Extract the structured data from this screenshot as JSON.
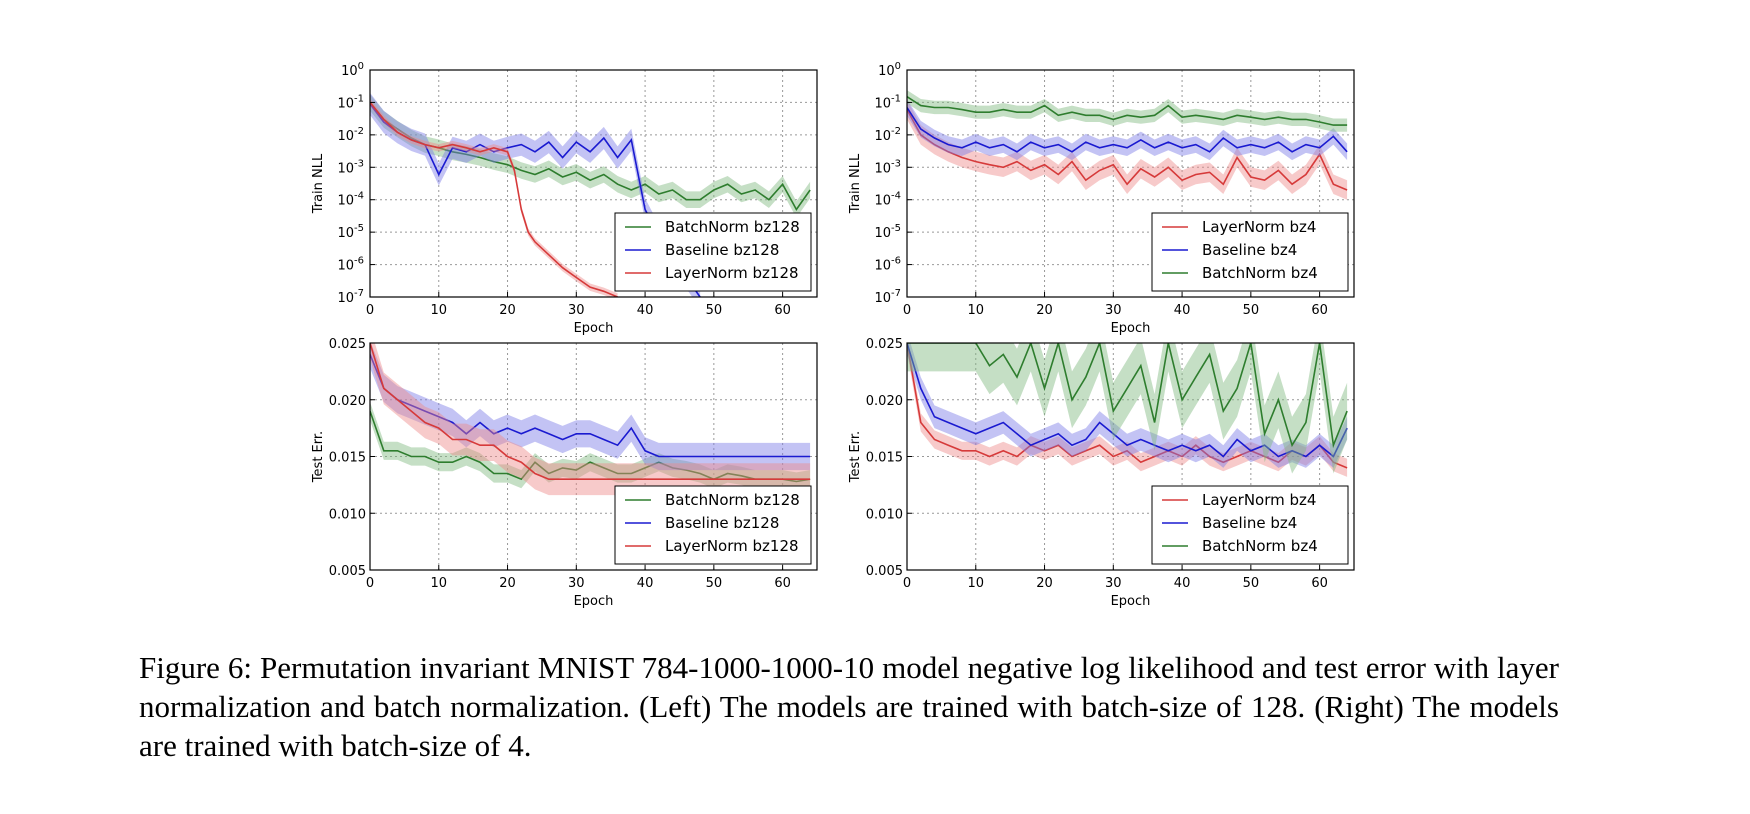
{
  "colors": {
    "batchnorm": "#2e7d2e",
    "baseline": "#1a1ad0",
    "layernorm": "#d63a3a"
  },
  "caption": "Figure 6: Permutation invariant MNIST 784-1000-1000-10 model negative log likelihood and test error with layer normalization and batch normalization. (Left) The models are trained with batch-size of 128. (Right) The models are trained with batch-size of 4.",
  "chart_data": [
    {
      "id": "nll-bz128",
      "type": "line",
      "xlabel": "Epoch",
      "ylabel": "Train NLL",
      "yscale": "log",
      "xlim": [
        0,
        65
      ],
      "ylim": [
        1e-07,
        1
      ],
      "xticks": [
        "0",
        "10",
        "20",
        "30",
        "40",
        "50",
        "60"
      ],
      "ytick_exponents": [
        "0",
        "-1",
        "-2",
        "-3",
        "-4",
        "-5",
        "-6",
        "-7"
      ],
      "grid": true,
      "legend_position": "lower-right",
      "legend": [
        "BatchNorm bz128",
        "Baseline bz128",
        "LayerNorm bz128"
      ],
      "series": [
        {
          "name": "BatchNorm bz128",
          "color_key": "batchnorm",
          "x": [
            0,
            2,
            4,
            6,
            8,
            10,
            12,
            14,
            16,
            18,
            20,
            22,
            24,
            26,
            28,
            30,
            32,
            34,
            36,
            38,
            40,
            42,
            44,
            46,
            48,
            50,
            52,
            54,
            56,
            58,
            60,
            62,
            64
          ],
          "y": [
            0.1,
            0.03,
            0.015,
            0.008,
            0.005,
            0.004,
            0.003,
            0.0025,
            0.002,
            0.0015,
            0.0012,
            0.0008,
            0.0006,
            0.0009,
            0.0005,
            0.0007,
            0.0004,
            0.0006,
            0.0003,
            0.0002,
            0.0003,
            0.00015,
            0.0002,
            0.0001,
            0.0001,
            0.0002,
            0.0003,
            0.00015,
            0.0002,
            0.0001,
            0.0003,
            5e-05,
            0.0002
          ],
          "band": 1.8
        },
        {
          "name": "Baseline bz128",
          "color_key": "baseline",
          "x": [
            0,
            2,
            4,
            6,
            8,
            10,
            12,
            14,
            16,
            18,
            20,
            22,
            24,
            26,
            28,
            30,
            32,
            34,
            36,
            38,
            40,
            42,
            44,
            46,
            48
          ],
          "y": [
            0.09,
            0.025,
            0.012,
            0.007,
            0.005,
            0.0006,
            0.004,
            0.003,
            0.005,
            0.003,
            0.004,
            0.005,
            0.003,
            0.006,
            0.002,
            0.006,
            0.003,
            0.008,
            0.002,
            0.007,
            5e-05,
            8e-06,
            1.5e-06,
            4e-07,
            1e-07
          ],
          "band": 2.2
        },
        {
          "name": "LayerNorm bz128",
          "color_key": "layernorm",
          "x": [
            0,
            2,
            4,
            6,
            8,
            10,
            12,
            14,
            16,
            18,
            20,
            21,
            22,
            23,
            24,
            26,
            28,
            30,
            32,
            34,
            36
          ],
          "y": [
            0.1,
            0.03,
            0.012,
            0.007,
            0.005,
            0.004,
            0.005,
            0.004,
            0.003,
            0.004,
            0.003,
            0.0008,
            5e-05,
            1e-05,
            5e-06,
            2e-06,
            8e-07,
            4e-07,
            2e-07,
            1.5e-07,
            1e-07
          ],
          "band": 1.3
        }
      ]
    },
    {
      "id": "nll-bz4",
      "type": "line",
      "xlabel": "Epoch",
      "ylabel": "Train NLL",
      "yscale": "log",
      "xlim": [
        0,
        65
      ],
      "ylim": [
        1e-07,
        1
      ],
      "xticks": [
        "0",
        "10",
        "20",
        "30",
        "40",
        "50",
        "60"
      ],
      "ytick_exponents": [
        "0",
        "-1",
        "-2",
        "-3",
        "-4",
        "-5",
        "-6",
        "-7"
      ],
      "grid": true,
      "legend_position": "lower-right",
      "legend": [
        "LayerNorm bz4",
        "Baseline bz4",
        "BatchNorm bz4"
      ],
      "series": [
        {
          "name": "LayerNorm bz4",
          "color_key": "layernorm",
          "x": [
            0,
            2,
            4,
            6,
            8,
            10,
            12,
            14,
            16,
            18,
            20,
            22,
            24,
            26,
            28,
            30,
            32,
            34,
            36,
            38,
            40,
            42,
            44,
            46,
            48,
            50,
            52,
            54,
            56,
            58,
            60,
            62,
            64
          ],
          "y": [
            0.06,
            0.01,
            0.005,
            0.003,
            0.002,
            0.0015,
            0.0012,
            0.001,
            0.0015,
            0.0008,
            0.0012,
            0.0006,
            0.0015,
            0.0004,
            0.0008,
            0.0012,
            0.0003,
            0.0009,
            0.0005,
            0.001,
            0.0004,
            0.0006,
            0.0007,
            0.0003,
            0.002,
            0.0005,
            0.0004,
            0.0008,
            0.0003,
            0.0006,
            0.0025,
            0.0003,
            0.0002
          ],
          "band": 2.0
        },
        {
          "name": "Baseline bz4",
          "color_key": "baseline",
          "x": [
            0,
            2,
            4,
            6,
            8,
            10,
            12,
            14,
            16,
            18,
            20,
            22,
            24,
            26,
            28,
            30,
            32,
            34,
            36,
            38,
            40,
            42,
            44,
            46,
            48,
            50,
            52,
            54,
            56,
            58,
            60,
            62,
            64
          ],
          "y": [
            0.07,
            0.015,
            0.008,
            0.005,
            0.004,
            0.006,
            0.004,
            0.005,
            0.003,
            0.006,
            0.004,
            0.005,
            0.003,
            0.006,
            0.004,
            0.005,
            0.004,
            0.007,
            0.004,
            0.006,
            0.004,
            0.005,
            0.003,
            0.008,
            0.004,
            0.005,
            0.004,
            0.006,
            0.003,
            0.005,
            0.004,
            0.009,
            0.003
          ],
          "band": 1.8
        },
        {
          "name": "BatchNorm bz4",
          "color_key": "batchnorm",
          "x": [
            0,
            2,
            4,
            6,
            8,
            10,
            12,
            14,
            16,
            18,
            20,
            22,
            24,
            26,
            28,
            30,
            32,
            34,
            36,
            38,
            40,
            42,
            44,
            46,
            48,
            50,
            52,
            54,
            56,
            58,
            60,
            62,
            64
          ],
          "y": [
            0.15,
            0.08,
            0.07,
            0.07,
            0.06,
            0.05,
            0.05,
            0.06,
            0.05,
            0.05,
            0.08,
            0.04,
            0.05,
            0.04,
            0.04,
            0.03,
            0.04,
            0.035,
            0.04,
            0.08,
            0.035,
            0.04,
            0.035,
            0.03,
            0.04,
            0.035,
            0.03,
            0.035,
            0.03,
            0.03,
            0.025,
            0.02,
            0.02
          ],
          "band": 1.6
        }
      ]
    },
    {
      "id": "err-bz128",
      "type": "line",
      "xlabel": "Epoch",
      "ylabel": "Test Err.",
      "yscale": "linear",
      "xlim": [
        0,
        65
      ],
      "ylim": [
        0.005,
        0.025
      ],
      "xticks": [
        "0",
        "10",
        "20",
        "30",
        "40",
        "50",
        "60"
      ],
      "yticks": [
        "0.025",
        "0.020",
        "0.015",
        "0.010",
        "0.005"
      ],
      "grid": true,
      "legend_position": "lower-right",
      "legend": [
        "BatchNorm bz128",
        "Baseline bz128",
        "LayerNorm bz128"
      ],
      "series": [
        {
          "name": "BatchNorm bz128",
          "color_key": "batchnorm",
          "x": [
            0,
            2,
            4,
            6,
            8,
            10,
            12,
            14,
            16,
            18,
            20,
            22,
            24,
            26,
            28,
            30,
            32,
            34,
            36,
            38,
            40,
            42,
            44,
            46,
            48,
            50,
            52,
            54,
            56,
            58,
            60,
            62,
            64
          ],
          "y": [
            0.019,
            0.0155,
            0.0155,
            0.015,
            0.015,
            0.0145,
            0.0145,
            0.015,
            0.0145,
            0.0135,
            0.0135,
            0.013,
            0.0145,
            0.0135,
            0.014,
            0.0138,
            0.0145,
            0.014,
            0.0135,
            0.0135,
            0.014,
            0.0145,
            0.014,
            0.0138,
            0.0135,
            0.013,
            0.0135,
            0.0133,
            0.013,
            0.013,
            0.013,
            0.0128,
            0.013
          ],
          "band": 0.0008
        },
        {
          "name": "Baseline bz128",
          "color_key": "baseline",
          "x": [
            0,
            2,
            4,
            6,
            8,
            10,
            12,
            14,
            16,
            18,
            20,
            22,
            24,
            26,
            28,
            30,
            32,
            34,
            36,
            38,
            40,
            42,
            44,
            46,
            48,
            50,
            52,
            54,
            56,
            58,
            60,
            62,
            64
          ],
          "y": [
            0.024,
            0.021,
            0.02,
            0.0195,
            0.019,
            0.0185,
            0.018,
            0.017,
            0.018,
            0.017,
            0.0175,
            0.017,
            0.0175,
            0.017,
            0.0165,
            0.017,
            0.017,
            0.0165,
            0.016,
            0.0175,
            0.0155,
            0.015,
            0.015,
            0.015,
            0.015,
            0.015,
            0.015,
            0.015,
            0.015,
            0.015,
            0.015,
            0.015,
            0.015
          ],
          "band": 0.0012
        },
        {
          "name": "LayerNorm bz128",
          "color_key": "layernorm",
          "x": [
            0,
            2,
            4,
            6,
            8,
            10,
            12,
            14,
            16,
            18,
            20,
            22,
            24,
            26,
            28,
            30,
            32,
            34,
            36,
            38,
            40,
            42,
            44,
            46,
            48,
            50,
            52,
            54,
            56,
            58,
            60,
            62,
            64
          ],
          "y": [
            0.025,
            0.021,
            0.02,
            0.019,
            0.018,
            0.0175,
            0.0165,
            0.0165,
            0.016,
            0.016,
            0.015,
            0.0145,
            0.0135,
            0.013,
            0.013,
            0.013,
            0.013,
            0.013,
            0.013,
            0.013,
            0.013,
            0.013,
            0.013,
            0.013,
            0.013,
            0.013,
            0.013,
            0.013,
            0.013,
            0.013,
            0.013,
            0.013,
            0.013
          ],
          "band": 0.0014
        }
      ]
    },
    {
      "id": "err-bz4",
      "type": "line",
      "xlabel": "Epoch",
      "ylabel": "Test Err.",
      "yscale": "linear",
      "xlim": [
        0,
        65
      ],
      "ylim": [
        0.005,
        0.025
      ],
      "xticks": [
        "0",
        "10",
        "20",
        "30",
        "40",
        "50",
        "60"
      ],
      "yticks": [
        "0.025",
        "0.020",
        "0.015",
        "0.010",
        "0.005"
      ],
      "grid": true,
      "legend_position": "lower-right",
      "legend": [
        "LayerNorm bz4",
        "Baseline bz4",
        "BatchNorm bz4"
      ],
      "series": [
        {
          "name": "LayerNorm bz4",
          "color_key": "layernorm",
          "x": [
            0,
            2,
            4,
            6,
            8,
            10,
            12,
            14,
            16,
            18,
            20,
            22,
            24,
            26,
            28,
            30,
            32,
            34,
            36,
            38,
            40,
            42,
            44,
            46,
            48,
            50,
            52,
            54,
            56,
            58,
            60,
            62,
            64
          ],
          "y": [
            0.025,
            0.018,
            0.0165,
            0.016,
            0.0155,
            0.0155,
            0.015,
            0.0155,
            0.015,
            0.016,
            0.0155,
            0.016,
            0.015,
            0.0155,
            0.016,
            0.015,
            0.0155,
            0.0145,
            0.015,
            0.0155,
            0.015,
            0.016,
            0.015,
            0.0145,
            0.015,
            0.0155,
            0.015,
            0.0145,
            0.0155,
            0.015,
            0.016,
            0.0145,
            0.014
          ],
          "band": 0.0008
        },
        {
          "name": "Baseline bz4",
          "color_key": "baseline",
          "x": [
            0,
            2,
            4,
            6,
            8,
            10,
            12,
            14,
            16,
            18,
            20,
            22,
            24,
            26,
            28,
            30,
            32,
            34,
            36,
            38,
            40,
            42,
            44,
            46,
            48,
            50,
            52,
            54,
            56,
            58,
            60,
            62,
            64
          ],
          "y": [
            0.025,
            0.021,
            0.0185,
            0.018,
            0.0175,
            0.017,
            0.0175,
            0.018,
            0.017,
            0.016,
            0.0165,
            0.017,
            0.016,
            0.0165,
            0.018,
            0.017,
            0.016,
            0.0165,
            0.016,
            0.0155,
            0.016,
            0.0155,
            0.016,
            0.015,
            0.0165,
            0.0155,
            0.016,
            0.015,
            0.0155,
            0.015,
            0.016,
            0.015,
            0.0175
          ],
          "band": 0.001
        },
        {
          "name": "BatchNorm bz4",
          "color_key": "batchnorm",
          "x": [
            0,
            2,
            4,
            6,
            8,
            10,
            12,
            14,
            16,
            18,
            20,
            22,
            24,
            26,
            28,
            30,
            32,
            34,
            36,
            38,
            40,
            42,
            44,
            46,
            48,
            50,
            52,
            54,
            56,
            58,
            60,
            62,
            64
          ],
          "y": [
            0.025,
            0.025,
            0.025,
            0.025,
            0.025,
            0.025,
            0.023,
            0.024,
            0.022,
            0.025,
            0.021,
            0.025,
            0.02,
            0.022,
            0.025,
            0.019,
            0.021,
            0.023,
            0.018,
            0.025,
            0.02,
            0.022,
            0.024,
            0.019,
            0.021,
            0.025,
            0.017,
            0.02,
            0.016,
            0.018,
            0.025,
            0.016,
            0.019
          ],
          "band": 0.0025
        }
      ]
    }
  ]
}
